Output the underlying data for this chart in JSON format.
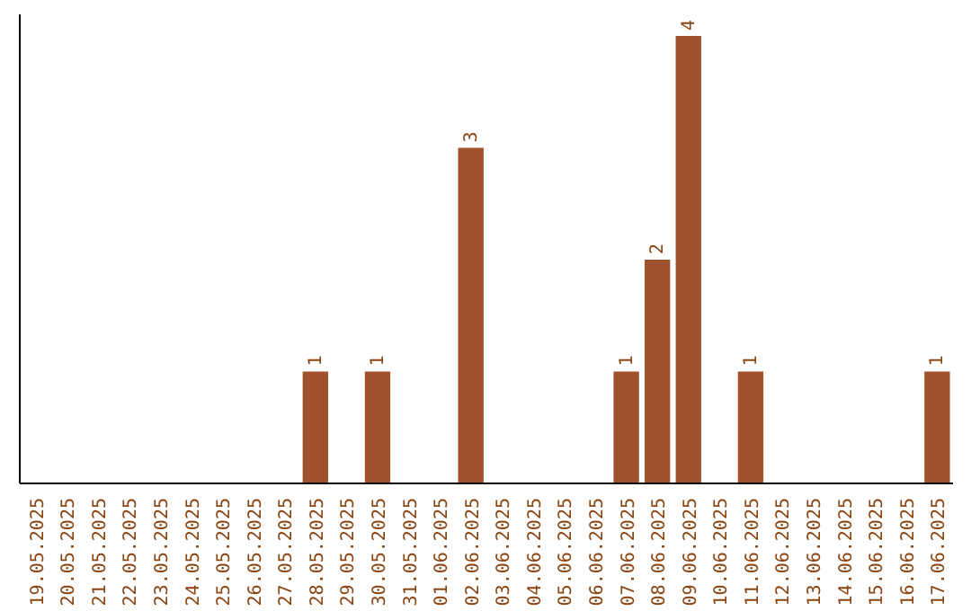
{
  "chart_data": {
    "type": "bar",
    "categories": [
      "19.05.2025",
      "20.05.2025",
      "21.05.2025",
      "22.05.2025",
      "23.05.2025",
      "24.05.2025",
      "25.05.2025",
      "26.05.2025",
      "27.05.2025",
      "28.05.2025",
      "29.05.2025",
      "30.05.2025",
      "31.05.2025",
      "01.06.2025",
      "02.06.2025",
      "03.06.2025",
      "04.06.2025",
      "05.06.2025",
      "06.06.2025",
      "07.06.2025",
      "08.06.2025",
      "09.06.2025",
      "10.06.2025",
      "11.06.2025",
      "12.06.2025",
      "13.06.2025",
      "14.06.2025",
      "15.06.2025",
      "16.06.2025",
      "17.06.2025"
    ],
    "values": [
      0,
      0,
      0,
      0,
      0,
      0,
      0,
      0,
      0,
      1,
      0,
      1,
      0,
      0,
      3,
      0,
      0,
      0,
      0,
      1,
      2,
      4,
      0,
      1,
      0,
      0,
      0,
      0,
      0,
      1
    ],
    "value_labels": [
      null,
      null,
      null,
      null,
      null,
      null,
      null,
      null,
      null,
      "1",
      null,
      "1",
      null,
      null,
      "3",
      null,
      null,
      null,
      null,
      "1",
      "2",
      "4",
      null,
      "1",
      null,
      null,
      null,
      null,
      null,
      "1"
    ],
    "color": "#a0522d",
    "tick_labels": "x"
  }
}
